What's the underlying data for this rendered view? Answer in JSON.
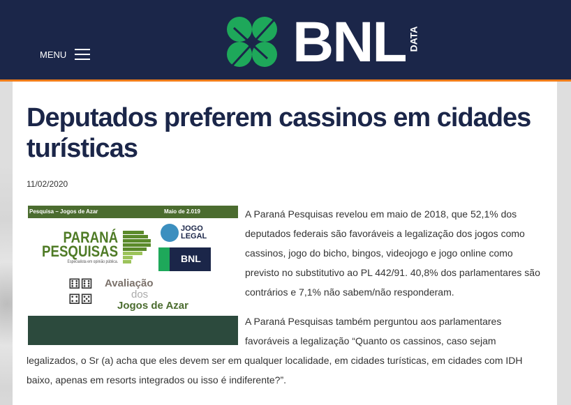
{
  "header": {
    "menu_label": "MENU",
    "logo_text": "BNL",
    "logo_sub": "DATA"
  },
  "article": {
    "title": "Deputados preferem cassinos em cidades turísticas",
    "date": "11/02/2020",
    "image": {
      "header_left": "Pesquisa – Jogos de Azar",
      "header_right": "Maio de 2.019",
      "brand1": "PARANÁ",
      "brand2": "PESQUISAS",
      "tagline": "Especialista em opinião pública.",
      "jogo1": "JOGO",
      "jogo2": "LEGAL",
      "bnl": "BNL",
      "aval1": "Avaliação",
      "aval2": "dos",
      "aval3": "Jogos de Azar"
    },
    "paragraphs": [
      "A Paraná Pesquisas revelou em maio de 2018, que 52,1% dos deputados federais são favoráveis a legalização dos jogos como cassinos, jogo do bicho, bingos, videojogo e jogo online como previsto no substitutivo ao PL 442/91. 40,8% dos parlamentares são contrários e 7,1% não sabem/não responderam.",
      "A Paraná Pesquisas também perguntou aos parlamentares favoráveis a legalização “Quanto os cassinos, caso sejam legalizados, o Sr (a) acha",
      "que eles devem ser em qualquer localidade, em cidades turísticas, em cidades com IDH baixo, apenas em resorts integrados ou isso é indiferente?”."
    ]
  },
  "colors": {
    "header_bg": "#1b2649",
    "accent": "#f07d1a",
    "clover": "#1ea85a"
  }
}
